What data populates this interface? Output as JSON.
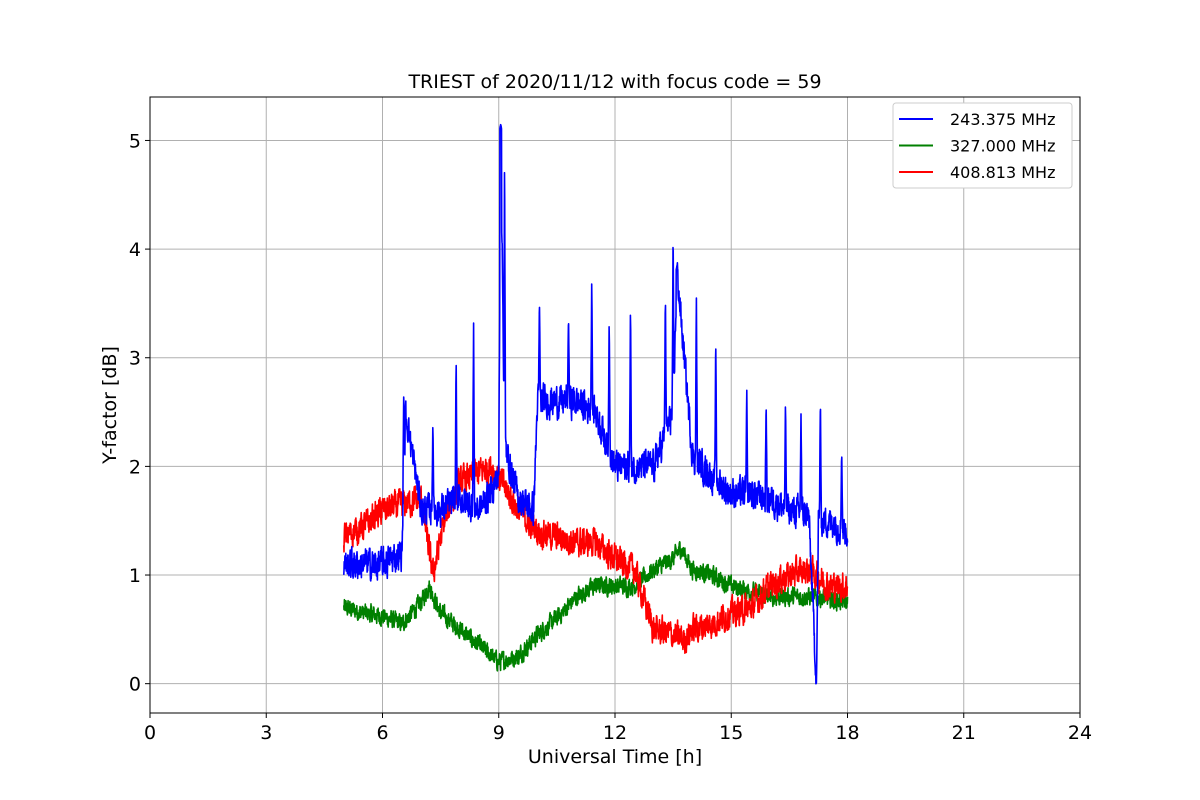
{
  "chart_data": {
    "type": "line",
    "title": "TRIEST of 2020/11/12 with focus code = 59",
    "xlabel": "Universal Time [h]",
    "ylabel": "Y-factor [dB]",
    "xlim": [
      0,
      24
    ],
    "ylim": [
      -0.27,
      5.4
    ],
    "xticks": [
      0,
      3,
      6,
      9,
      12,
      15,
      18,
      21,
      24
    ],
    "yticks": [
      0,
      1,
      2,
      3,
      4,
      5
    ],
    "grid": true,
    "legend_position": "top-right",
    "series": [
      {
        "name": "243.375 MHz",
        "color": "#0000ff",
        "noise": 0.12,
        "x": [
          5.0,
          5.5,
          6.0,
          6.5,
          6.6,
          7.0,
          7.5,
          8.0,
          8.5,
          9.0,
          9.05,
          9.15,
          9.5,
          9.9,
          10.0,
          10.5,
          11.0,
          11.5,
          12.0,
          12.5,
          13.0,
          13.5,
          13.6,
          14.0,
          14.5,
          15.0,
          15.5,
          16.0,
          16.5,
          17.0,
          17.2,
          17.25,
          17.5,
          18.0
        ],
        "y": [
          1.1,
          1.1,
          1.1,
          1.2,
          2.5,
          1.6,
          1.6,
          1.7,
          1.6,
          1.9,
          5.1,
          2.2,
          1.7,
          1.6,
          2.6,
          2.6,
          2.6,
          2.5,
          2.0,
          2.0,
          2.0,
          2.5,
          3.8,
          2.1,
          1.9,
          1.75,
          1.75,
          1.7,
          1.6,
          1.55,
          0.0,
          1.5,
          1.5,
          1.4
        ],
        "spikes": [
          {
            "x": 6.55,
            "y": 2.7
          },
          {
            "x": 7.3,
            "y": 2.4
          },
          {
            "x": 7.9,
            "y": 3.0
          },
          {
            "x": 8.35,
            "y": 3.35
          },
          {
            "x": 9.05,
            "y": 5.15
          },
          {
            "x": 9.15,
            "y": 4.9
          },
          {
            "x": 10.05,
            "y": 3.55
          },
          {
            "x": 10.8,
            "y": 3.4
          },
          {
            "x": 11.4,
            "y": 3.7
          },
          {
            "x": 11.85,
            "y": 3.35
          },
          {
            "x": 12.4,
            "y": 3.5
          },
          {
            "x": 13.3,
            "y": 3.6
          },
          {
            "x": 13.5,
            "y": 4.2
          },
          {
            "x": 13.6,
            "y": 3.85
          },
          {
            "x": 14.1,
            "y": 3.55
          },
          {
            "x": 14.6,
            "y": 3.2
          },
          {
            "x": 15.4,
            "y": 2.7
          },
          {
            "x": 15.9,
            "y": 2.6
          },
          {
            "x": 16.4,
            "y": 2.6
          },
          {
            "x": 16.8,
            "y": 2.5
          },
          {
            "x": 17.3,
            "y": 2.65
          },
          {
            "x": 17.85,
            "y": 2.15
          }
        ]
      },
      {
        "name": "327.000 MHz",
        "color": "#008000",
        "noise": 0.07,
        "x": [
          5.0,
          5.5,
          6.0,
          6.5,
          7.0,
          7.2,
          7.5,
          8.0,
          8.5,
          9.0,
          9.5,
          10.0,
          10.5,
          11.0,
          11.5,
          12.0,
          12.5,
          13.0,
          13.5,
          13.7,
          14.0,
          14.5,
          15.0,
          15.5,
          16.0,
          16.5,
          17.0,
          17.5,
          18.0
        ],
        "y": [
          0.7,
          0.65,
          0.62,
          0.55,
          0.75,
          0.9,
          0.65,
          0.5,
          0.35,
          0.2,
          0.25,
          0.45,
          0.6,
          0.8,
          0.9,
          0.9,
          0.9,
          1.05,
          1.15,
          1.25,
          1.05,
          1.0,
          0.9,
          0.85,
          0.8,
          0.8,
          0.8,
          0.78,
          0.75
        ]
      },
      {
        "name": "408.813 MHz",
        "color": "#ff0000",
        "noise": 0.11,
        "x": [
          5.0,
          5.5,
          6.0,
          6.5,
          7.0,
          7.3,
          7.6,
          8.0,
          8.5,
          8.8,
          9.0,
          9.5,
          10.0,
          10.5,
          11.0,
          11.5,
          12.0,
          12.5,
          13.0,
          13.5,
          13.8,
          14.0,
          14.5,
          15.0,
          15.5,
          16.0,
          16.5,
          17.0,
          17.5,
          18.0
        ],
        "y": [
          1.35,
          1.45,
          1.6,
          1.65,
          1.7,
          1.0,
          1.5,
          1.85,
          1.95,
          2.0,
          1.9,
          1.6,
          1.4,
          1.35,
          1.3,
          1.3,
          1.15,
          1.05,
          0.5,
          0.45,
          0.4,
          0.5,
          0.55,
          0.65,
          0.7,
          0.9,
          1.0,
          1.05,
          0.9,
          0.9
        ]
      }
    ]
  }
}
